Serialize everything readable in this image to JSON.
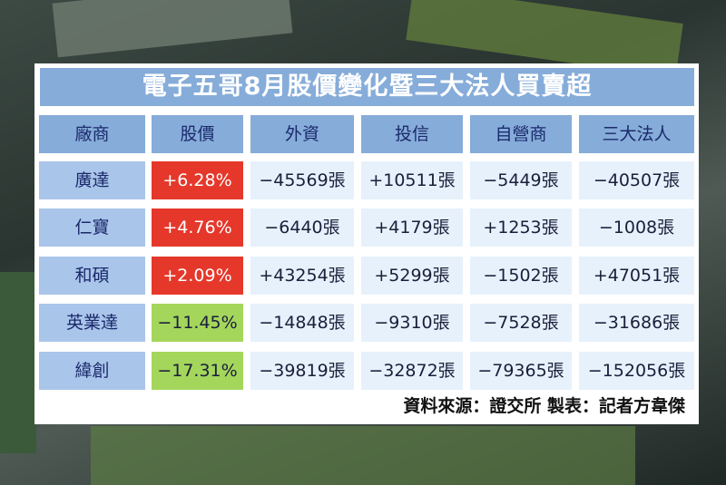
{
  "title": "電子五哥8月股價變化暨三大法人買賣超",
  "table": {
    "header": [
      "廠商",
      "股價",
      "外資",
      "投信",
      "自營商",
      "三大法人"
    ],
    "rows": [
      [
        "廣達",
        "+6.28%",
        "−45569張",
        "+10511張",
        "−5449張",
        "−40507張"
      ],
      [
        "仁寶",
        "+4.76%",
        "−6440張",
        "+4179張",
        "+1253張",
        "−1008張"
      ],
      [
        "和碩",
        "+2.09%",
        "+43254張",
        "+5299張",
        "−1502張",
        "+47051張"
      ],
      [
        "英業達",
        "−11.45%",
        "−14848張",
        "−9310張",
        "−7528張",
        "−31686張"
      ],
      [
        "緯創",
        "−17.31%",
        "−39819張",
        "−32872張",
        "−79365張",
        "−152056張"
      ]
    ],
    "price_colors": [
      "#e5382b",
      "#e5382b",
      "#e5382b",
      "#a4d65c",
      "#a4d65c"
    ]
  },
  "source": "資料來源：證交所 製表：記者方韋傑"
}
